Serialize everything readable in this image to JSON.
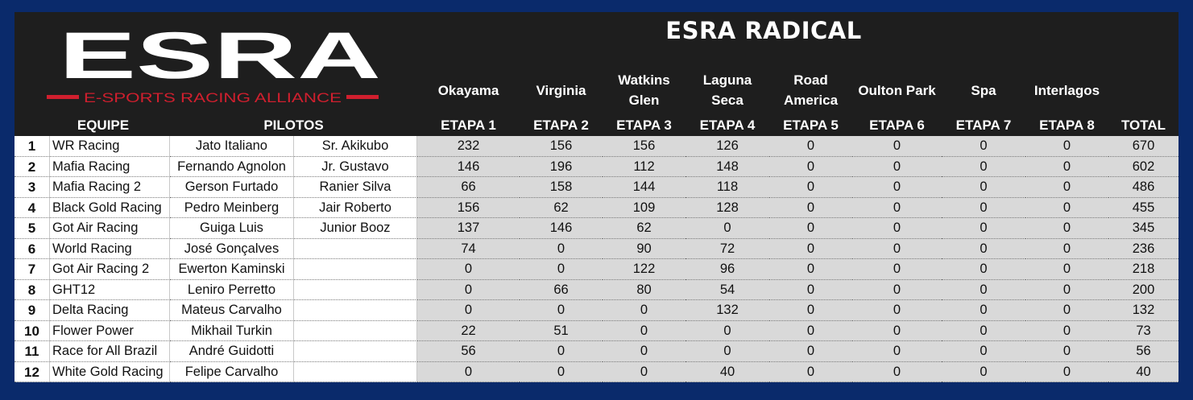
{
  "title": "ESRA RADICAL",
  "logo": {
    "main": "ESRA",
    "sub": "E-SPORTS RACING ALLIANCE"
  },
  "tracks": [
    "Okayama",
    "Virginia",
    "Watkins Glen",
    "Laguna Seca",
    "Road America",
    "Oulton Park",
    "Spa",
    "Interlagos"
  ],
  "headers": {
    "team": "EQUIPE",
    "drivers": "PILOTOS",
    "stages": [
      "ETAPA 1",
      "ETAPA 2",
      "ETAPA 3",
      "ETAPA 4",
      "ETAPA 5",
      "ETAPA 6",
      "ETAPA 7",
      "ETAPA 8"
    ],
    "total": "TOTAL"
  },
  "rows": [
    {
      "pos": "1",
      "team": "WR Racing",
      "driver1": "Jato Italiano",
      "driver2": "Sr. Akikubo",
      "stages": [
        "232",
        "156",
        "156",
        "126",
        "0",
        "0",
        "0",
        "0"
      ],
      "total": "670"
    },
    {
      "pos": "2",
      "team": "Mafia Racing",
      "driver1": "Fernando Agnolon",
      "driver2": "Jr. Gustavo",
      "stages": [
        "146",
        "196",
        "112",
        "148",
        "0",
        "0",
        "0",
        "0"
      ],
      "total": "602"
    },
    {
      "pos": "3",
      "team": "Mafia Racing 2",
      "driver1": "Gerson Furtado",
      "driver2": "Ranier Silva",
      "stages": [
        "66",
        "158",
        "144",
        "118",
        "0",
        "0",
        "0",
        "0"
      ],
      "total": "486"
    },
    {
      "pos": "4",
      "team": "Black Gold Racing",
      "driver1": "Pedro Meinberg",
      "driver2": "Jair Roberto",
      "stages": [
        "156",
        "62",
        "109",
        "128",
        "0",
        "0",
        "0",
        "0"
      ],
      "total": "455"
    },
    {
      "pos": "5",
      "team": "Got Air Racing",
      "driver1": "Guiga Luis",
      "driver2": "Junior Booz",
      "stages": [
        "137",
        "146",
        "62",
        "0",
        "0",
        "0",
        "0",
        "0"
      ],
      "total": "345"
    },
    {
      "pos": "6",
      "team": "World Racing",
      "driver1": "José Gonçalves",
      "driver2": "",
      "stages": [
        "74",
        "0",
        "90",
        "72",
        "0",
        "0",
        "0",
        "0"
      ],
      "total": "236"
    },
    {
      "pos": "7",
      "team": "Got Air Racing 2",
      "driver1": "Ewerton Kaminski",
      "driver2": "",
      "stages": [
        "0",
        "0",
        "122",
        "96",
        "0",
        "0",
        "0",
        "0"
      ],
      "total": "218"
    },
    {
      "pos": "8",
      "team": "GHT12",
      "driver1": "Leniro Perretto",
      "driver2": "",
      "stages": [
        "0",
        "66",
        "80",
        "54",
        "0",
        "0",
        "0",
        "0"
      ],
      "total": "200"
    },
    {
      "pos": "9",
      "team": "Delta Racing",
      "driver1": "Mateus Carvalho",
      "driver2": "",
      "stages": [
        "0",
        "0",
        "0",
        "132",
        "0",
        "0",
        "0",
        "0"
      ],
      "total": "132"
    },
    {
      "pos": "10",
      "team": "Flower Power",
      "driver1": "Mikhail Turkin",
      "driver2": "",
      "stages": [
        "22",
        "51",
        "0",
        "0",
        "0",
        "0",
        "0",
        "0"
      ],
      "total": "73"
    },
    {
      "pos": "11",
      "team": "Race for All Brazil",
      "driver1": "André Guidotti",
      "driver2": "",
      "stages": [
        "56",
        "0",
        "0",
        "0",
        "0",
        "0",
        "0",
        "0"
      ],
      "total": "56"
    },
    {
      "pos": "12",
      "team": "White Gold Racing",
      "driver1": "Felipe Carvalho",
      "driver2": "",
      "stages": [
        "0",
        "0",
        "0",
        "40",
        "0",
        "0",
        "0",
        "0"
      ],
      "total": "40"
    }
  ]
}
